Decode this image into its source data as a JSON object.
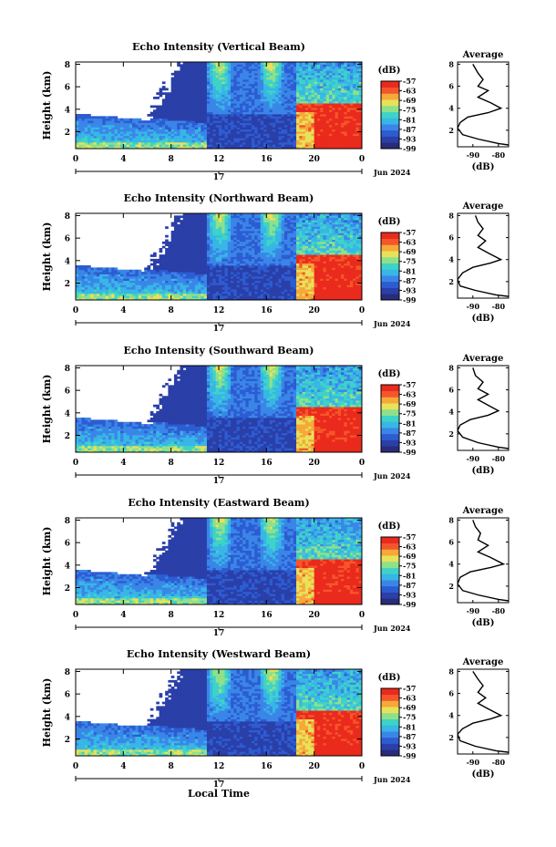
{
  "colors": {
    "scale": [
      "#282d7a",
      "#2a3fa8",
      "#2d5cd2",
      "#3a86e8",
      "#38b6e6",
      "#3fd3c8",
      "#8fe08a",
      "#e7e25a",
      "#f6a838",
      "#f4562b",
      "#ea2a1c"
    ],
    "gap": "#ffffff"
  },
  "shared": {
    "xticks": [
      "0",
      "4",
      "8",
      "12",
      "16",
      "20",
      "0"
    ],
    "day_label": "17",
    "date_label": "Jun 2024",
    "yticks": [
      "2",
      "4",
      "6",
      "8"
    ],
    "ylabel": "Height (km)",
    "unit_label": "(dB)",
    "colorbar_ticks": [
      "-57",
      "-63",
      "-69",
      "-75",
      "-81",
      "-87",
      "-93",
      "-99"
    ],
    "avg_title": "Average",
    "avg_xticks": [
      "-90",
      "-80"
    ],
    "avg_xlabel": "(dB)",
    "xlabel": "Local Time"
  },
  "chart_data": [
    {
      "type": "heatmap",
      "beam": "vertical",
      "title": "Echo Intensity (Vertical Beam)",
      "xlabel": "",
      "ylabel": "Height (km)",
      "xlim": [
        0,
        24
      ],
      "ylim": [
        0.5,
        8.2
      ],
      "zlim": [
        -99,
        -57
      ],
      "avg_profile": {
        "type": "line",
        "xlim": [
          -96,
          -76
        ],
        "ylim": [
          0.5,
          8.2
        ],
        "points": [
          [
            -74,
            0.6
          ],
          [
            -80,
            0.8
          ],
          [
            -88,
            1.2
          ],
          [
            -94,
            1.6
          ],
          [
            -96,
            2.2
          ],
          [
            -95,
            2.7
          ],
          [
            -92,
            3.2
          ],
          [
            -84,
            3.6
          ],
          [
            -79,
            4.0
          ],
          [
            -83,
            4.5
          ],
          [
            -88,
            5.0
          ],
          [
            -84,
            5.6
          ],
          [
            -88,
            6.0
          ],
          [
            -86,
            6.6
          ],
          [
            -88,
            7.2
          ],
          [
            -90,
            8.0
          ]
        ]
      }
    },
    {
      "type": "heatmap",
      "beam": "northward",
      "title": "Echo Intensity (Northward Beam)",
      "xlabel": "",
      "ylabel": "Height (km)",
      "xlim": [
        0,
        24
      ],
      "ylim": [
        0.5,
        8.2
      ],
      "zlim": [
        -99,
        -57
      ],
      "avg_profile": {
        "type": "line",
        "xlim": [
          -96,
          -76
        ],
        "ylim": [
          0.5,
          8.2
        ],
        "points": [
          [
            -74,
            0.6
          ],
          [
            -81,
            0.8
          ],
          [
            -89,
            1.2
          ],
          [
            -95,
            1.6
          ],
          [
            -96,
            2.2
          ],
          [
            -94,
            2.8
          ],
          [
            -90,
            3.3
          ],
          [
            -83,
            3.7
          ],
          [
            -79,
            4.0
          ],
          [
            -84,
            4.6
          ],
          [
            -88,
            5.1
          ],
          [
            -85,
            5.7
          ],
          [
            -88,
            6.2
          ],
          [
            -86,
            6.8
          ],
          [
            -88,
            7.4
          ],
          [
            -89,
            8.0
          ]
        ]
      }
    },
    {
      "type": "heatmap",
      "beam": "southward",
      "title": "Echo Intensity (Southward Beam)",
      "xlabel": "",
      "ylabel": "Height (km)",
      "xlim": [
        0,
        24
      ],
      "ylim": [
        0.5,
        8.2
      ],
      "zlim": [
        -99,
        -57
      ],
      "avg_profile": {
        "type": "line",
        "xlim": [
          -96,
          -76
        ],
        "ylim": [
          0.5,
          8.2
        ],
        "points": [
          [
            -74,
            0.6
          ],
          [
            -80,
            0.8
          ],
          [
            -88,
            1.2
          ],
          [
            -94,
            1.7
          ],
          [
            -96,
            2.3
          ],
          [
            -95,
            2.8
          ],
          [
            -91,
            3.3
          ],
          [
            -84,
            3.7
          ],
          [
            -80,
            4.1
          ],
          [
            -84,
            4.6
          ],
          [
            -88,
            5.1
          ],
          [
            -84,
            5.6
          ],
          [
            -88,
            6.1
          ],
          [
            -86,
            6.7
          ],
          [
            -89,
            7.3
          ],
          [
            -90,
            8.0
          ]
        ]
      }
    },
    {
      "type": "heatmap",
      "beam": "eastward",
      "title": "Echo Intensity (Eastward Beam)",
      "xlabel": "",
      "ylabel": "Height (km)",
      "xlim": [
        0,
        24
      ],
      "ylim": [
        0.5,
        8.2
      ],
      "zlim": [
        -99,
        -57
      ],
      "avg_profile": {
        "type": "line",
        "xlim": [
          -96,
          -76
        ],
        "ylim": [
          0.5,
          8.2
        ],
        "points": [
          [
            -74,
            0.6
          ],
          [
            -80,
            0.8
          ],
          [
            -88,
            1.2
          ],
          [
            -94,
            1.6
          ],
          [
            -96,
            2.2
          ],
          [
            -95,
            2.8
          ],
          [
            -91,
            3.3
          ],
          [
            -83,
            3.7
          ],
          [
            -78,
            4.0
          ],
          [
            -83,
            4.6
          ],
          [
            -88,
            5.1
          ],
          [
            -84,
            5.7
          ],
          [
            -88,
            6.2
          ],
          [
            -87,
            6.8
          ],
          [
            -89,
            7.4
          ],
          [
            -90,
            8.0
          ]
        ]
      }
    },
    {
      "type": "heatmap",
      "beam": "westward",
      "title": "Echo Intensity (Westward Beam)",
      "xlabel": "Local Time",
      "ylabel": "Height (km)",
      "xlim": [
        0,
        24
      ],
      "ylim": [
        0.5,
        8.2
      ],
      "zlim": [
        -99,
        -57
      ],
      "avg_profile": {
        "type": "line",
        "xlim": [
          -96,
          -76
        ],
        "ylim": [
          0.5,
          8.2
        ],
        "points": [
          [
            -74,
            0.6
          ],
          [
            -81,
            0.8
          ],
          [
            -89,
            1.2
          ],
          [
            -95,
            1.7
          ],
          [
            -96,
            2.3
          ],
          [
            -94,
            2.8
          ],
          [
            -90,
            3.3
          ],
          [
            -83,
            3.7
          ],
          [
            -79,
            4.0
          ],
          [
            -84,
            4.6
          ],
          [
            -88,
            5.1
          ],
          [
            -85,
            5.6
          ],
          [
            -88,
            6.1
          ],
          [
            -86,
            6.7
          ],
          [
            -88,
            7.3
          ],
          [
            -90,
            8.0
          ]
        ]
      }
    }
  ]
}
